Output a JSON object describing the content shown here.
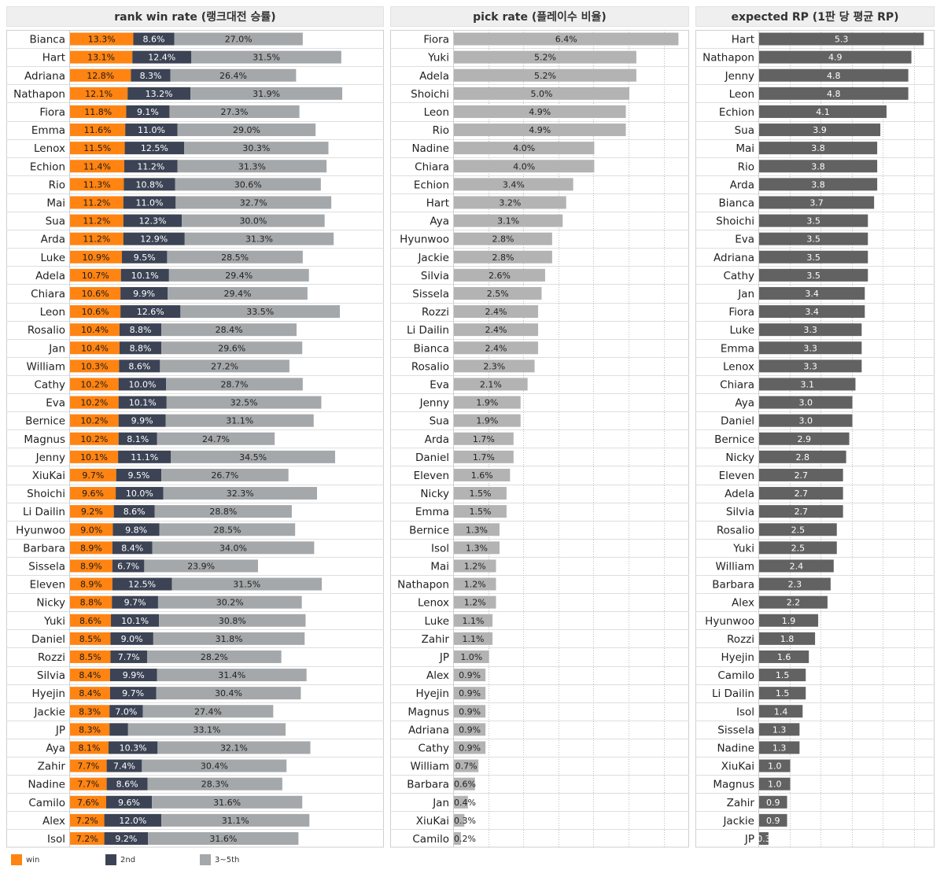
{
  "colors": {
    "win": "#ff8412",
    "second": "#3c4354",
    "third": "#a4a8ab",
    "pick": "#b3b3b3",
    "rp": "#626262"
  },
  "legend": [
    {
      "label": "win",
      "color": "#ff8412"
    },
    {
      "label": "2nd",
      "color": "#3c4354"
    },
    {
      "label": "3~5th",
      "color": "#a4a8ab"
    }
  ],
  "chart_data": [
    {
      "type": "bar",
      "stacked": true,
      "orientation": "horizontal",
      "title": "rank win rate (랭크대전 승률)",
      "unit": "%",
      "categories": [
        "Bianca",
        "Hart",
        "Adriana",
        "Nathapon",
        "Fiora",
        "Emma",
        "Lenox",
        "Echion",
        "Rio",
        "Mai",
        "Sua",
        "Arda",
        "Luke",
        "Adela",
        "Chiara",
        "Leon",
        "Rosalio",
        "Jan",
        "William",
        "Cathy",
        "Eva",
        "Bernice",
        "Magnus",
        "Jenny",
        "XiuKai",
        "Shoichi",
        "Li Dailin",
        "Hyunwoo",
        "Barbara",
        "Sissela",
        "Eleven",
        "Nicky",
        "Yuki",
        "Daniel",
        "Rozzi",
        "Silvia",
        "Hyejin",
        "Jackie",
        "JP",
        "Aya",
        "Zahir",
        "Nadine",
        "Camilo",
        "Alex",
        "Isol"
      ],
      "series": [
        {
          "name": "win",
          "values": [
            13.3,
            13.1,
            12.8,
            12.1,
            11.8,
            11.6,
            11.5,
            11.4,
            11.3,
            11.2,
            11.2,
            11.2,
            10.9,
            10.7,
            10.6,
            10.6,
            10.4,
            10.4,
            10.3,
            10.2,
            10.2,
            10.2,
            10.2,
            10.1,
            9.7,
            9.6,
            9.2,
            9.0,
            8.9,
            8.9,
            8.9,
            8.8,
            8.6,
            8.5,
            8.5,
            8.4,
            8.4,
            8.3,
            8.3,
            8.1,
            7.7,
            7.7,
            7.6,
            7.2,
            7.2
          ]
        },
        {
          "name": "2nd",
          "values": [
            8.6,
            12.4,
            8.3,
            13.2,
            9.1,
            11.0,
            12.5,
            11.2,
            10.8,
            11.0,
            12.3,
            12.9,
            9.5,
            10.1,
            9.9,
            12.6,
            8.8,
            8.8,
            8.6,
            10.0,
            10.1,
            9.9,
            8.1,
            11.1,
            9.5,
            10.0,
            8.6,
            9.8,
            8.4,
            6.7,
            12.5,
            9.7,
            10.1,
            9.0,
            7.7,
            9.9,
            9.7,
            7.0,
            null,
            10.3,
            7.4,
            8.6,
            9.6,
            12.0,
            9.2
          ]
        },
        {
          "name": "3~5th",
          "values": [
            27.0,
            31.5,
            26.4,
            31.9,
            27.3,
            29.0,
            30.3,
            31.3,
            30.6,
            32.7,
            30.0,
            31.3,
            28.5,
            29.4,
            29.4,
            33.5,
            28.4,
            29.6,
            27.2,
            28.7,
            32.5,
            31.1,
            24.7,
            34.5,
            26.7,
            32.3,
            28.8,
            28.5,
            34.0,
            23.9,
            31.5,
            30.2,
            30.8,
            31.8,
            28.2,
            31.4,
            30.4,
            27.4,
            33.1,
            32.1,
            30.4,
            28.3,
            31.6,
            31.1,
            31.6
          ]
        }
      ]
    },
    {
      "type": "bar",
      "orientation": "horizontal",
      "title": "pick rate (플레이수 비율)",
      "unit": "%",
      "categories": [
        "Fiora",
        "Yuki",
        "Adela",
        "Shoichi",
        "Leon",
        "Rio",
        "Nadine",
        "Chiara",
        "Echion",
        "Hart",
        "Aya",
        "Hyunwoo",
        "Jackie",
        "Silvia",
        "Sissela",
        "Rozzi",
        "Li Dailin",
        "Bianca",
        "Rosalio",
        "Eva",
        "Jenny",
        "Sua",
        "Arda",
        "Daniel",
        "Eleven",
        "Nicky",
        "Emma",
        "Bernice",
        "Isol",
        "Mai",
        "Nathapon",
        "Lenox",
        "Luke",
        "Zahir",
        "JP",
        "Alex",
        "Hyejin",
        "Magnus",
        "Adriana",
        "Cathy",
        "William",
        "Barbara",
        "Jan",
        "XiuKai",
        "Camilo"
      ],
      "values": [
        6.4,
        5.2,
        5.2,
        5.0,
        4.9,
        4.9,
        4.0,
        4.0,
        3.4,
        3.2,
        3.1,
        2.8,
        2.8,
        2.6,
        2.5,
        2.4,
        2.4,
        2.4,
        2.3,
        2.1,
        1.9,
        1.9,
        1.7,
        1.7,
        1.6,
        1.5,
        1.5,
        1.3,
        1.3,
        1.2,
        1.2,
        1.2,
        1.1,
        1.1,
        1.0,
        0.9,
        0.9,
        0.9,
        0.9,
        0.9,
        0.7,
        0.6,
        0.4,
        0.3,
        0.2
      ]
    },
    {
      "type": "bar",
      "orientation": "horizontal",
      "title": "expected RP (1판 당 평균 RP)",
      "categories": [
        "Hart",
        "Nathapon",
        "Jenny",
        "Leon",
        "Echion",
        "Sua",
        "Mai",
        "Rio",
        "Arda",
        "Bianca",
        "Shoichi",
        "Eva",
        "Adriana",
        "Cathy",
        "Jan",
        "Fiora",
        "Luke",
        "Emma",
        "Lenox",
        "Chiara",
        "Aya",
        "Daniel",
        "Bernice",
        "Nicky",
        "Eleven",
        "Adela",
        "Silvia",
        "Rosalio",
        "Yuki",
        "William",
        "Barbara",
        "Alex",
        "Hyunwoo",
        "Rozzi",
        "Hyejin",
        "Camilo",
        "Li Dailin",
        "Isol",
        "Sissela",
        "Nadine",
        "XiuKai",
        "Magnus",
        "Zahir",
        "Jackie",
        "JP"
      ],
      "values": [
        5.3,
        4.9,
        4.8,
        4.8,
        4.1,
        3.9,
        3.8,
        3.8,
        3.8,
        3.7,
        3.5,
        3.5,
        3.5,
        3.5,
        3.4,
        3.4,
        3.3,
        3.3,
        3.3,
        3.1,
        3.0,
        3.0,
        2.9,
        2.8,
        2.7,
        2.7,
        2.7,
        2.5,
        2.5,
        2.4,
        2.3,
        2.2,
        1.9,
        1.8,
        1.6,
        1.5,
        1.5,
        1.4,
        1.3,
        1.3,
        1.0,
        1.0,
        0.9,
        0.9,
        0.3
      ]
    }
  ]
}
